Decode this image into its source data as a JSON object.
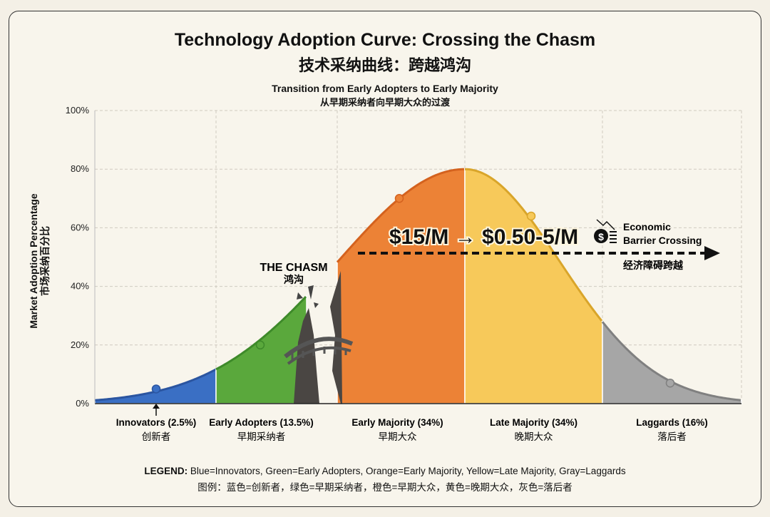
{
  "chart_data": {
    "type": "area",
    "title": "Technology Adoption Curve: Crossing the Chasm",
    "title_zh": "技术采纳曲线：跨越鸿沟",
    "subtitle": "Transition from Early Adopters to Early Majority",
    "subtitle_zh": "从早期采纳者向早期大众的过渡",
    "ylabel": "Market Adoption Percentage",
    "ylabel_zh": "市场采纳百分比",
    "ylim": [
      0,
      100
    ],
    "yticks": [
      "0%",
      "20%",
      "40%",
      "60%",
      "80%",
      "100%"
    ],
    "grid": true,
    "peak_value": 80,
    "segments": [
      {
        "label": "Innovators (2.5%)",
        "label_zh": "创新者",
        "share": 2.5,
        "color": "#3a6fc4",
        "marker_value": 5
      },
      {
        "label": "Early Adopters (13.5%)",
        "label_zh": "早期采纳者",
        "share": 13.5,
        "color": "#5aa83c",
        "marker_value": 20
      },
      {
        "label": "Early Majority (34%)",
        "label_zh": "早期大众",
        "share": 34,
        "color": "#ec8236",
        "marker_value": 70
      },
      {
        "label": "Late Majority (34%)",
        "label_zh": "晚期大众",
        "share": 34,
        "color": "#f7c95a",
        "marker_value": 64
      },
      {
        "label": "Laggards (16%)",
        "label_zh": "落后者",
        "share": 16,
        "color": "#a6a6a6",
        "marker_value": 7
      }
    ],
    "annotations": {
      "chasm": "THE CHASM",
      "chasm_zh": "鸿沟",
      "price": "$15/M → $0.50-5/M",
      "barrier": "Economic",
      "barrier2": "Barrier Crossing",
      "barrier_zh": "经济障碍跨越"
    },
    "legend": {
      "label": "LEGEND:",
      "text": "Blue=Innovators, Green=Early Adopters, Orange=Early Majority, Yellow=Late Majority, Gray=Laggards",
      "text_zh": "图例：蓝色=创新者，绿色=早期采纳者，橙色=早期大众，黄色=晚期大众，灰色=落后者"
    }
  }
}
